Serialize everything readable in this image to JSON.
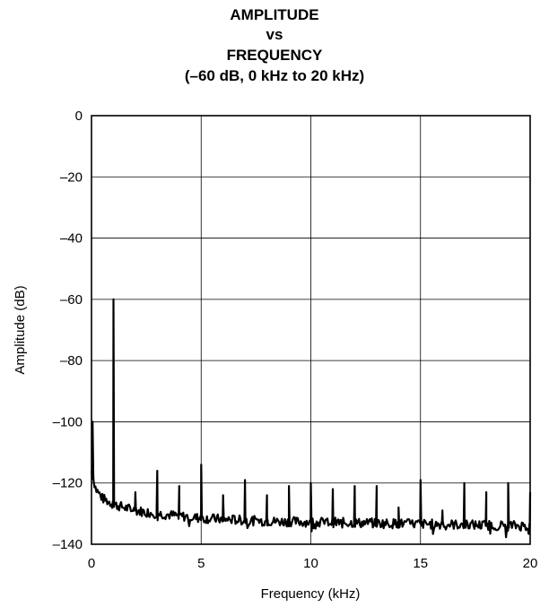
{
  "chart_data": {
    "type": "line",
    "title_lines": [
      "AMPLITUDE",
      "vs",
      "FREQUENCY",
      "(–60 dB, 0 kHz to 20 kHz)"
    ],
    "xlabel": "Frequency (kHz)",
    "ylabel": "Amplitude (dB)",
    "xlim": [
      0,
      20
    ],
    "ylim": [
      -140,
      0
    ],
    "x_ticks": [
      0,
      5,
      10,
      15,
      20
    ],
    "y_ticks": [
      0,
      -20,
      -40,
      -60,
      -80,
      -100,
      -120,
      -140
    ],
    "x_tick_labels": [
      "0",
      "5",
      "10",
      "15",
      "20"
    ],
    "y_tick_labels": [
      "0",
      "–20",
      "–40",
      "–60",
      "–80",
      "–100",
      "–120",
      "–140"
    ],
    "grid": true,
    "legend": "none",
    "series": [
      {
        "noise_floor": [
          [
            0,
            -116
          ],
          [
            0.2,
            -122
          ],
          [
            0.5,
            -125
          ],
          [
            1,
            -127
          ],
          [
            2,
            -129
          ],
          [
            3,
            -130
          ],
          [
            5,
            -131.5
          ],
          [
            8,
            -132.5
          ],
          [
            12,
            -133
          ],
          [
            16,
            -133.5
          ],
          [
            20,
            -134
          ]
        ],
        "spikes": [
          {
            "x": 0.05,
            "y": -100
          },
          {
            "x": 1,
            "y": -60
          },
          {
            "x": 2,
            "y": -123
          },
          {
            "x": 3,
            "y": -116
          },
          {
            "x": 4,
            "y": -121
          },
          {
            "x": 5,
            "y": -114
          },
          {
            "x": 6,
            "y": -124
          },
          {
            "x": 7,
            "y": -119
          },
          {
            "x": 8,
            "y": -124
          },
          {
            "x": 9,
            "y": -121
          },
          {
            "x": 10,
            "y": -120
          },
          {
            "x": 11,
            "y": -122
          },
          {
            "x": 12,
            "y": -121
          },
          {
            "x": 13,
            "y": -121
          },
          {
            "x": 14,
            "y": -128
          },
          {
            "x": 15,
            "y": -119
          },
          {
            "x": 16,
            "y": -129
          },
          {
            "x": 17,
            "y": -120
          },
          {
            "x": 18,
            "y": -123
          },
          {
            "x": 19,
            "y": -120
          },
          {
            "x": 20,
            "y": -123
          }
        ]
      }
    ]
  }
}
